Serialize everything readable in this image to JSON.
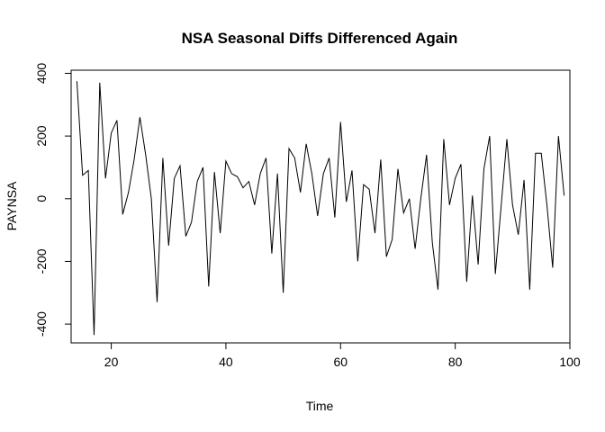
{
  "chart_data": {
    "type": "line",
    "title": "NSA Seasonal Diffs Differenced Again",
    "xlabel": "Time",
    "ylabel": "PAYNSA",
    "xlim": [
      13,
      100
    ],
    "ylim": [
      -460,
      410
    ],
    "xticks": [
      20,
      40,
      60,
      80,
      100
    ],
    "yticks": [
      -400,
      -200,
      0,
      200,
      400
    ],
    "grid": false,
    "legend": "none",
    "line_color": "#000000",
    "series": [
      {
        "x": [
          14,
          15,
          16,
          17,
          18,
          19,
          20,
          21,
          22,
          23,
          24,
          25,
          26,
          27,
          28,
          29,
          30,
          31,
          32,
          33,
          34,
          35,
          36,
          37,
          38,
          39,
          40,
          41,
          42,
          43,
          44,
          45,
          46,
          47,
          48,
          49,
          50,
          51,
          52,
          53,
          54,
          55,
          56,
          57,
          58,
          59,
          60,
          61,
          62,
          63,
          64,
          65,
          66,
          67,
          68,
          69,
          70,
          71,
          72,
          73,
          74,
          75,
          76,
          77,
          78,
          79,
          80,
          81,
          82,
          83,
          84,
          85,
          86,
          87,
          88,
          89,
          90,
          91,
          92,
          93,
          94,
          95,
          96,
          97,
          98,
          99
        ],
        "values": [
          375,
          75,
          90,
          -435,
          370,
          65,
          210,
          250,
          -50,
          20,
          125,
          260,
          140,
          0,
          -330,
          130,
          -150,
          65,
          105,
          -120,
          -75,
          55,
          100,
          -280,
          85,
          -110,
          120,
          80,
          70,
          35,
          55,
          -20,
          80,
          130,
          -175,
          80,
          -300,
          160,
          130,
          20,
          175,
          80,
          -55,
          80,
          130,
          -60,
          245,
          -10,
          90,
          -200,
          45,
          30,
          -110,
          125,
          -185,
          -130,
          95,
          -45,
          0,
          -160,
          0,
          140,
          -140,
          -290,
          190,
          -20,
          65,
          110,
          -265,
          10,
          -210,
          95,
          200,
          -240,
          -25,
          190,
          -20,
          -115,
          60,
          -290,
          145,
          145,
          -20,
          -220,
          200,
          10
        ]
      }
    ]
  }
}
